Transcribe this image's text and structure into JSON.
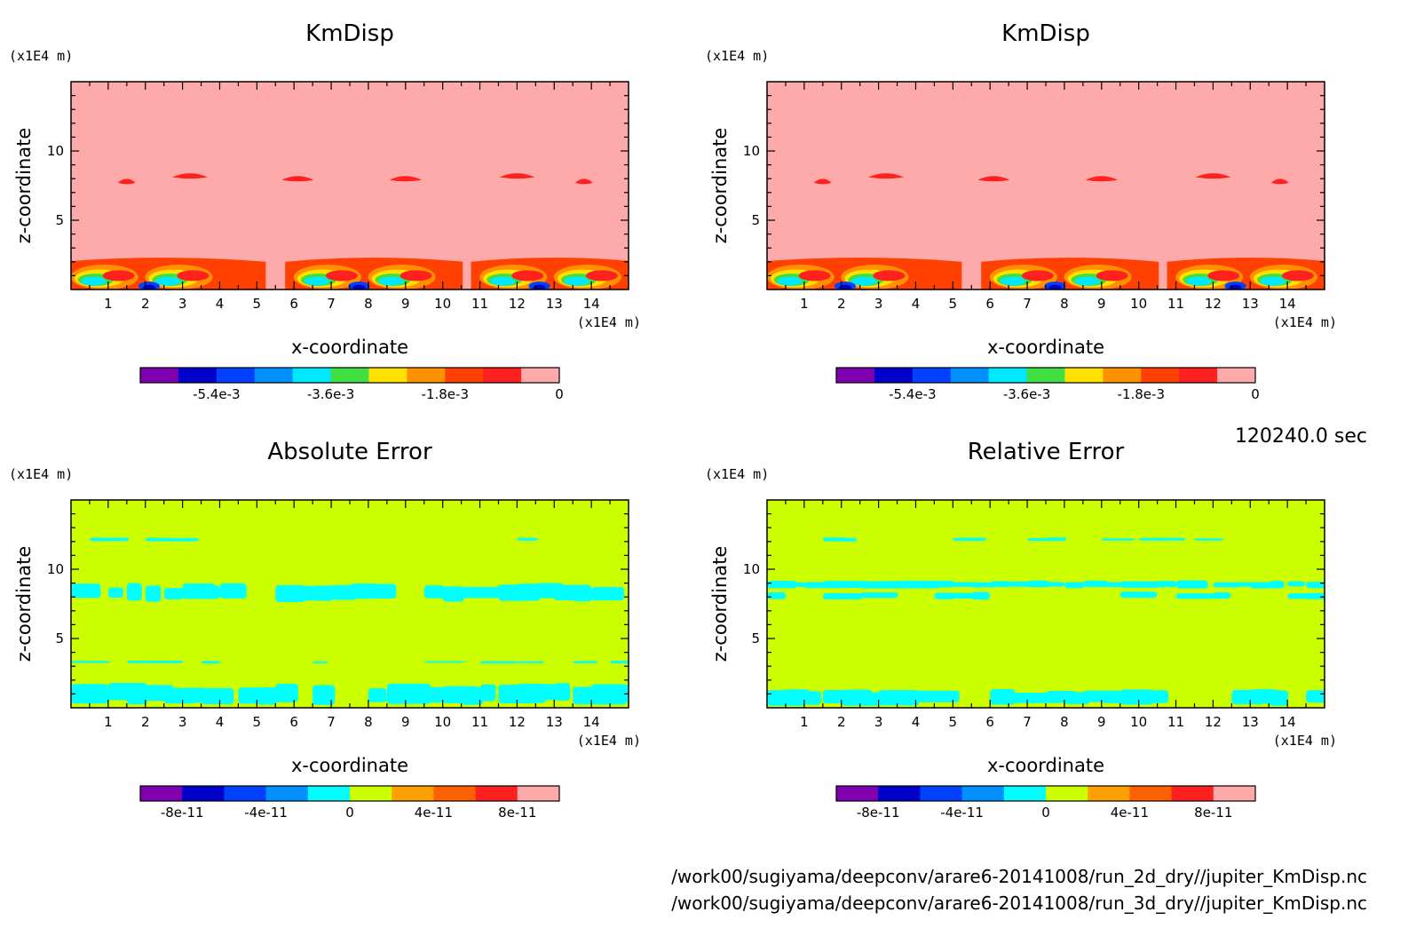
{
  "figure": {
    "time_label": "120240.0 sec",
    "files": [
      "/work00/sugiyama/deepconv/arare6-20141008/run_2d_dry//jupiter_KmDisp.nc",
      "/work00/sugiyama/deepconv/arare6-20141008/run_3d_dry//jupiter_KmDisp.nc"
    ]
  },
  "chart_data": [
    {
      "type": "heatmap",
      "title": "KmDisp",
      "xlabel": "x-coordinate",
      "ylabel": "z-coordinate",
      "x_unit": "(x1E4 m)",
      "y_unit": "(x1E4 m)",
      "xlim": [
        0,
        15
      ],
      "ylim": [
        0,
        15
      ],
      "xticks": [
        1,
        2,
        3,
        4,
        5,
        6,
        7,
        8,
        9,
        10,
        11,
        12,
        13,
        14
      ],
      "yticks": [
        5,
        10
      ],
      "colorbar": {
        "colors": [
          "#8000b0",
          "#0000c8",
          "#0040ff",
          "#0090ff",
          "#00e8ff",
          "#40e040",
          "#ffe000",
          "#ff9000",
          "#ff4000",
          "#ff2020",
          "#ffaaaa"
        ],
        "tick_labels": [
          "-5.4e-3",
          "-3.6e-3",
          "-1.8e-3",
          "0"
        ],
        "tick_values": [
          -0.0054,
          -0.0036,
          -0.0018,
          0
        ],
        "range": [
          -0.0066,
          0
        ]
      },
      "pattern": "kmdisp"
    },
    {
      "type": "heatmap",
      "title": "KmDisp",
      "xlabel": "x-coordinate",
      "ylabel": "z-coordinate",
      "x_unit": "(x1E4 m)",
      "y_unit": "(x1E4 m)",
      "xlim": [
        0,
        15
      ],
      "ylim": [
        0,
        15
      ],
      "xticks": [
        1,
        2,
        3,
        4,
        5,
        6,
        7,
        8,
        9,
        10,
        11,
        12,
        13,
        14
      ],
      "yticks": [
        5,
        10
      ],
      "colorbar": {
        "colors": [
          "#8000b0",
          "#0000c8",
          "#0040ff",
          "#0090ff",
          "#00e8ff",
          "#40e040",
          "#ffe000",
          "#ff9000",
          "#ff4000",
          "#ff2020",
          "#ffaaaa"
        ],
        "tick_labels": [
          "-5.4e-3",
          "-3.6e-3",
          "-1.8e-3",
          "0"
        ],
        "tick_values": [
          -0.0054,
          -0.0036,
          -0.0018,
          0
        ],
        "range": [
          -0.0066,
          0
        ]
      },
      "pattern": "kmdisp"
    },
    {
      "type": "heatmap",
      "title": "Absolute Error",
      "xlabel": "x-coordinate",
      "ylabel": "z-coordinate",
      "x_unit": "(x1E4 m)",
      "y_unit": "(x1E4 m)",
      "xlim": [
        0,
        15
      ],
      "ylim": [
        0,
        15
      ],
      "xticks": [
        1,
        2,
        3,
        4,
        5,
        6,
        7,
        8,
        9,
        10,
        11,
        12,
        13,
        14
      ],
      "yticks": [
        5,
        10
      ],
      "colorbar": {
        "colors": [
          "#8000b0",
          "#0000c8",
          "#0040ff",
          "#0090ff",
          "#00ffff",
          "#ccff00",
          "#ffa000",
          "#ff6000",
          "#ff2020",
          "#ffaaaa"
        ],
        "tick_labels": [
          "-8e-11",
          "-4e-11",
          "0",
          "4e-11",
          "8e-11"
        ],
        "tick_values": [
          -8e-11,
          -4e-11,
          0,
          4e-11,
          8e-11
        ],
        "range": [
          -1e-10,
          1e-10
        ]
      },
      "pattern": "abs_error"
    },
    {
      "type": "heatmap",
      "title": "Relative Error",
      "xlabel": "x-coordinate",
      "ylabel": "z-coordinate",
      "x_unit": "(x1E4 m)",
      "y_unit": "(x1E4 m)",
      "xlim": [
        0,
        15
      ],
      "ylim": [
        0,
        15
      ],
      "xticks": [
        1,
        2,
        3,
        4,
        5,
        6,
        7,
        8,
        9,
        10,
        11,
        12,
        13,
        14
      ],
      "yticks": [
        5,
        10
      ],
      "colorbar": {
        "colors": [
          "#8000b0",
          "#0000c8",
          "#0040ff",
          "#0090ff",
          "#00ffff",
          "#ccff00",
          "#ffa000",
          "#ff6000",
          "#ff2020",
          "#ffaaaa"
        ],
        "tick_labels": [
          "-8e-11",
          "-4e-11",
          "0",
          "4e-11",
          "8e-11"
        ],
        "tick_values": [
          -8e-11,
          -4e-11,
          0,
          4e-11,
          8e-11
        ],
        "range": [
          -1e-10,
          1e-10
        ]
      },
      "pattern": "rel_error"
    }
  ]
}
